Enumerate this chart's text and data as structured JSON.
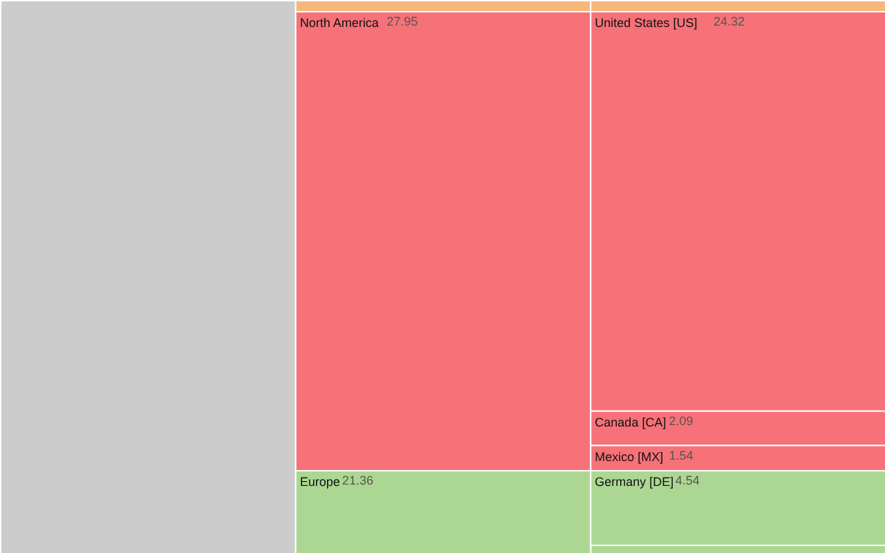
{
  "chart_data": {
    "type": "other",
    "data_labels": true,
    "categories": [
      "North America",
      "United States [US]",
      "Canada [CA]",
      "Mexico [MX]",
      "Europe",
      "Germany [DE]"
    ],
    "series": [
      {
        "values": [
          27.95,
          null,
          null,
          null,
          21.36,
          null
        ],
        "colors": [
          "#f67278",
          null,
          null,
          null,
          "#acd792",
          null
        ]
      },
      {
        "values": [
          null,
          24.32,
          2.09,
          1.54,
          null,
          4.54
        ],
        "colors": [
          null,
          "#f67278",
          "#f67278",
          "#f67278",
          null,
          "#acd792"
        ]
      }
    ]
  }
}
